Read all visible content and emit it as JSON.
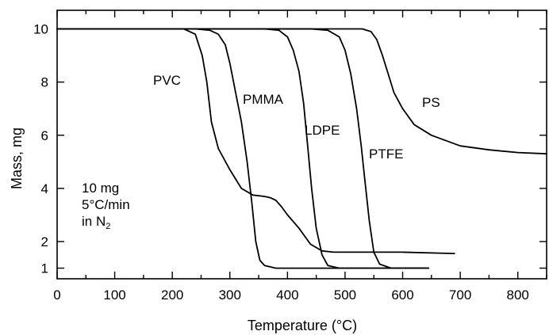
{
  "chart_data": {
    "type": "line",
    "title": "",
    "xlabel": "Temperature (°C)",
    "ylabel": "Mass, mg",
    "xlim": [
      0,
      850
    ],
    "ylim": [
      0.6,
      10.7
    ],
    "x_ticks": [
      "0",
      "100",
      "200",
      "300",
      "400",
      "500",
      "600",
      "700",
      "800"
    ],
    "y_ticks": [
      "1",
      "2",
      "4",
      "6",
      "8",
      "10"
    ],
    "grid": false,
    "legend": "none",
    "annotation": {
      "line1": "10 mg",
      "line2": "5°C/min",
      "line3_prefix": "in N",
      "line3_sub": "2"
    },
    "series": [
      {
        "name": "PVC",
        "x": [
          0,
          220,
          240,
          252,
          260,
          268,
          280,
          300,
          320,
          340,
          360,
          370,
          380,
          390,
          400,
          420,
          440,
          460,
          480,
          520,
          600,
          690
        ],
        "y": [
          10,
          10,
          9.8,
          9.0,
          8.0,
          6.5,
          5.5,
          4.7,
          4.0,
          3.75,
          3.7,
          3.65,
          3.55,
          3.3,
          3.0,
          2.5,
          1.9,
          1.65,
          1.6,
          1.6,
          1.6,
          1.55
        ]
      },
      {
        "name": "PMMA",
        "x": [
          0,
          240,
          265,
          280,
          292,
          300,
          310,
          320,
          330,
          338,
          345,
          352,
          360,
          380,
          400,
          500,
          645
        ],
        "y": [
          10,
          10,
          9.95,
          9.8,
          9.4,
          8.7,
          7.6,
          6.5,
          5.0,
          3.5,
          2.0,
          1.3,
          1.1,
          1.0,
          1.0,
          1.0,
          1.0
        ]
      },
      {
        "name": "LDPE",
        "x": [
          0,
          300,
          360,
          385,
          400,
          410,
          420,
          428,
          435,
          442,
          450,
          460,
          470,
          490,
          520,
          645
        ],
        "y": [
          10,
          10,
          10,
          9.95,
          9.7,
          9.2,
          8.4,
          7.2,
          5.6,
          4.0,
          2.5,
          1.5,
          1.1,
          1.0,
          1.0,
          1.0
        ]
      },
      {
        "name": "PTFE",
        "x": [
          0,
          350,
          440,
          470,
          490,
          500,
          510,
          520,
          528,
          535,
          542,
          550,
          560,
          580,
          645
        ],
        "y": [
          10,
          10,
          10,
          9.95,
          9.7,
          9.2,
          8.3,
          7.0,
          5.6,
          4.2,
          2.8,
          1.6,
          1.15,
          1.0,
          1.0
        ]
      },
      {
        "name": "PS",
        "x": [
          0,
          400,
          530,
          545,
          555,
          565,
          575,
          585,
          600,
          620,
          650,
          700,
          750,
          800,
          850
        ],
        "y": [
          10,
          10,
          10,
          9.9,
          9.6,
          9.0,
          8.3,
          7.6,
          7.0,
          6.4,
          6.0,
          5.6,
          5.45,
          5.35,
          5.3
        ]
      }
    ]
  }
}
